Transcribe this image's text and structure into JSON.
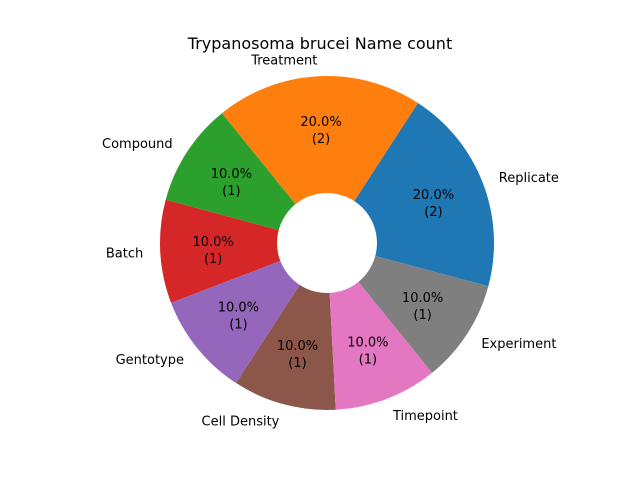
{
  "chart_data": {
    "type": "pie",
    "title": "Trypanosoma brucei Name count",
    "donut": true,
    "start_angle_deg": -15,
    "direction": "counterclockwise",
    "categories": [
      "Replicate",
      "Treatment",
      "Compound",
      "Batch",
      "Gentotype",
      "Cell Density",
      "Timepoint",
      "Experiment"
    ],
    "values": [
      2,
      2,
      1,
      1,
      1,
      1,
      1,
      1
    ],
    "percent_labels": [
      "20.0%",
      "20.0%",
      "10.0%",
      "10.0%",
      "10.0%",
      "10.0%",
      "10.0%",
      "10.0%"
    ],
    "count_labels": [
      "(2)",
      "(2)",
      "(1)",
      "(1)",
      "(1)",
      "(1)",
      "(1)",
      "(1)"
    ],
    "colors": [
      "#1f77b4",
      "#ff7f0e",
      "#2ca02c",
      "#d62728",
      "#9467bd",
      "#8c564b",
      "#e377c2",
      "#7f7f7f"
    ],
    "legend": "none"
  }
}
